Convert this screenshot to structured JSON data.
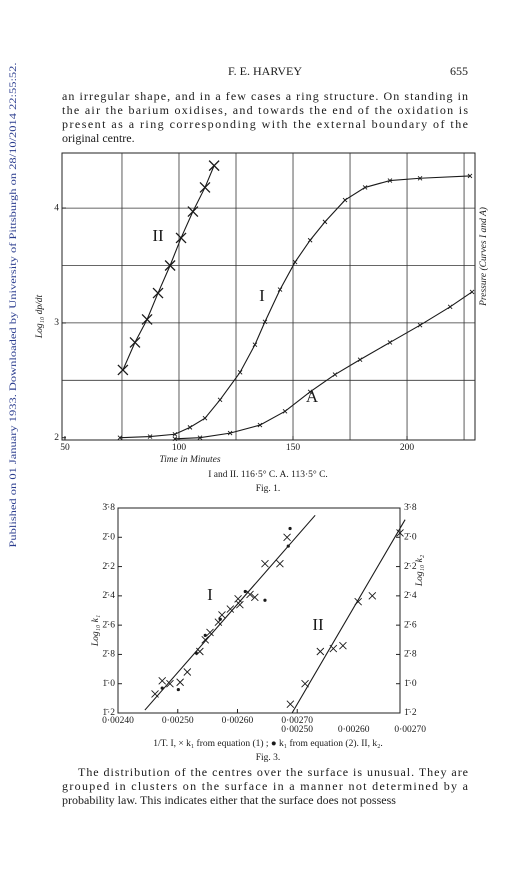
{
  "side_note": "Published on 01 January 1933. Downloaded by University of Pittsburgh on 28/10/2014 22:55:52.",
  "header": {
    "author": "F. E. HARVEY",
    "page": "655"
  },
  "paragraphs": [
    {
      "lines": [
        "an irregular shape, and in a few cases a ring structure.  On standing in",
        "the air the barium oxidises, and towards the end of the oxidation is",
        "present as a ring corresponding with the external boundary of the",
        "original centre."
      ]
    },
    {
      "lines": [
        "The distribution of the centres over the surface is unusual.  They are",
        "grouped in clusters on the surface in a manner not determined by a",
        "probability law.  This indicates either that the surface does not possess"
      ]
    }
  ],
  "chart_data": [
    {
      "type": "line",
      "xlabel": "Time in Minutes",
      "ylabel": "Log₁₀ dp/dt",
      "y2label": "Pressure  (Curves I and A)",
      "xlim": [
        48.7,
        229.8
      ],
      "ylim": [
        1.98,
        4.48
      ],
      "xticks": [
        50,
        100,
        150,
        200
      ],
      "yticks": [
        2,
        3,
        4
      ],
      "grid": true,
      "xgrid": [
        75,
        100,
        125,
        150,
        175,
        200,
        225
      ],
      "ygrid": [
        2.5,
        3,
        3.5,
        4
      ],
      "series": [
        {
          "name": "II",
          "color": "#1a1a1a",
          "line": true,
          "marker": "x",
          "marker_size": 5,
          "x": [
            75.4,
            80.7,
            86.0,
            90.8,
            96.1,
            100.9,
            106.1,
            111.4,
            115.4
          ],
          "values": [
            2.59,
            2.83,
            3.03,
            3.26,
            3.5,
            3.74,
            3.97,
            4.18,
            4.37
          ]
        },
        {
          "name": "I",
          "color": "#1a1a1a",
          "line": true,
          "marker": "x",
          "marker_size": 2,
          "x": [
            74.1,
            87.3,
            98.2,
            104.8,
            111.4,
            118.0,
            126.8,
            133.3,
            137.7,
            144.3,
            150.9,
            157.5,
            164.0,
            172.8,
            181.6,
            192.5,
            205.7,
            227.6
          ],
          "values": [
            2.0,
            2.01,
            2.03,
            2.09,
            2.17,
            2.33,
            2.57,
            2.81,
            3.01,
            3.29,
            3.53,
            3.72,
            3.88,
            4.07,
            4.18,
            4.24,
            4.26,
            4.28
          ]
        },
        {
          "name": "A",
          "color": "#1a1a1a",
          "line": true,
          "marker": "x",
          "marker_size": 2,
          "x": [
            98.2,
            109.2,
            122.4,
            135.5,
            146.5,
            157.5,
            168.4,
            179.4,
            192.5,
            205.7,
            218.9,
            228.5
          ],
          "values": [
            1.99,
            2.0,
            2.04,
            2.11,
            2.23,
            2.4,
            2.55,
            2.68,
            2.83,
            2.98,
            3.14,
            3.27
          ]
        }
      ],
      "caption": "I and II.  116·5° C.      A.  113·5° C.",
      "figure_label": "Fig. 1."
    },
    {
      "type": "scatter",
      "ylabel": "Log₁₀ k₁",
      "y2label": "Log₁₀ k₂",
      "xlim": [
        0.0024,
        0.002872
      ],
      "x2lim": [
        0.002183,
        0.002682
      ],
      "ylim": [
        -0.8,
        -2.2
      ],
      "y2lim": [
        -0.8,
        -2.2
      ],
      "xticks": [
        {
          "value": 0.0024,
          "label": "0·00240"
        },
        {
          "value": 0.0025,
          "label": "0·00250"
        },
        {
          "value": 0.0026,
          "label": "0·00260"
        },
        {
          "value": 0.0027,
          "label": "0·00270"
        }
      ],
      "x2ticks": [
        {
          "value": 0.0025,
          "label": "0·00250"
        },
        {
          "value": 0.0026,
          "label": "0·00260"
        },
        {
          "value": 0.0027,
          "label": "0·00270"
        }
      ],
      "yticks": [
        {
          "value": -2.2,
          "label": "3̄·8"
        },
        {
          "value": -2.0,
          "label": "2̄·0"
        },
        {
          "value": -1.8,
          "label": "2̄·2"
        },
        {
          "value": -1.6,
          "label": "2̄·4"
        },
        {
          "value": -1.4,
          "label": "2̄·6"
        },
        {
          "value": -1.2,
          "label": "2̄·8"
        },
        {
          "value": -1.0,
          "label": "1̄·0"
        },
        {
          "value": -0.8,
          "label": "1̄·2"
        }
      ],
      "y2ticks": [
        {
          "value": -2.2,
          "label": "3̄·8"
        },
        {
          "value": -2.0,
          "label": "2̄·0"
        },
        {
          "value": -1.8,
          "label": "2̄·2"
        },
        {
          "value": -1.6,
          "label": "2̄·4"
        },
        {
          "value": -1.4,
          "label": "2̄·6"
        },
        {
          "value": -1.2,
          "label": "2̄·8"
        },
        {
          "value": -1.0,
          "label": "1̄·0"
        },
        {
          "value": -0.8,
          "label": "1̄·2"
        }
      ],
      "grid": false,
      "series": [
        {
          "name": "I",
          "color": "#1a1a1a",
          "line": false,
          "marker": "x",
          "marker_size": 3.5,
          "x": [
            0.002462,
            0.002474,
            0.002487,
            0.002504,
            0.002516,
            0.002537,
            0.002546,
            0.002554,
            0.002568,
            0.002574,
            0.002588,
            0.002601,
            0.002604,
            0.002621,
            0.002629,
            0.002646,
            0.002671,
            0.002683
          ],
          "values": [
            -0.93,
            -1.02,
            -1.0,
            -1.01,
            -1.08,
            -1.22,
            -1.3,
            -1.35,
            -1.42,
            -1.47,
            -1.51,
            -1.58,
            -1.54,
            -1.61,
            -1.59,
            -1.82,
            -1.82,
            -2.0
          ]
        },
        {
          "color": "#1a1a1a",
          "line": false,
          "marker": "dot",
          "marker_size": 1.6,
          "x": [
            0.002474,
            0.002501,
            0.002531,
            0.002546,
            0.002571,
            0.002613,
            0.002646,
            0.002688,
            0.002685
          ],
          "values": [
            -0.97,
            -0.96,
            -1.21,
            -1.33,
            -1.44,
            -1.63,
            -1.57,
            -2.06,
            -1.94
          ]
        },
        {
          "color": "#1a1a1a",
          "line": true,
          "x": [
            0.002445,
            0.00273
          ],
          "values": [
            -0.82,
            -2.15
          ]
        },
        {
          "name": "II",
          "color": "#1a1a1a",
          "line": false,
          "marker": "x",
          "marker_size": 3.5,
          "axis": "x2",
          "x": [
            0.002488,
            0.002514,
            0.002541,
            0.002564,
            0.002581,
            0.002608,
            0.002633,
            0.002682
          ],
          "values": [
            -0.86,
            -1.0,
            -1.22,
            -1.24,
            -1.26,
            -1.56,
            -1.6,
            -2.03
          ]
        },
        {
          "color": "#1a1a1a",
          "line": true,
          "axis": "x2",
          "x": [
            0.002491,
            0.002691
          ],
          "values": [
            -0.8,
            -2.12
          ]
        }
      ],
      "caption": "1/T.   I, × k₁ from equation (1) ;  ● k₁ from equation (2).     II, k₂.",
      "figure_label": "Fig. 3."
    }
  ]
}
